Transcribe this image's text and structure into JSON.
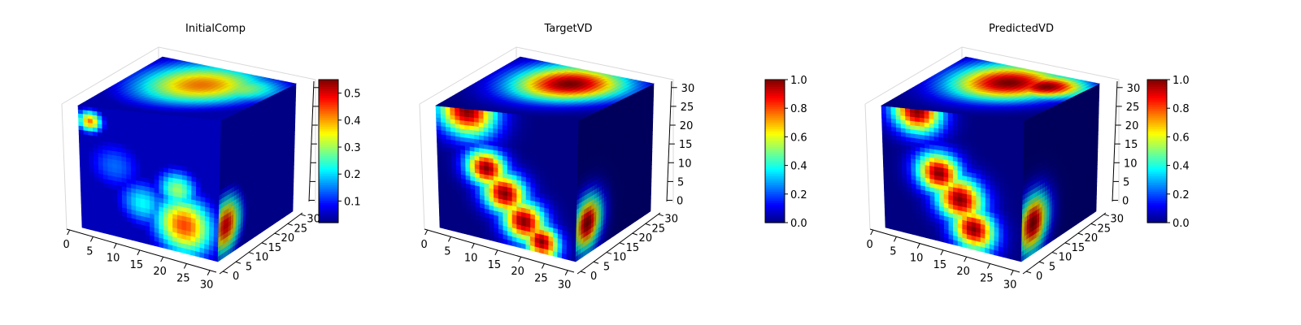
{
  "chart_data": [
    {
      "type": "3d-voxel",
      "title": "InitialComp",
      "x_ticks": [
        "0",
        "5",
        "10",
        "15",
        "20",
        "25",
        "30"
      ],
      "y_ticks": [
        "0",
        "5",
        "10",
        "15",
        "20",
        "25",
        "30"
      ],
      "z_ticks": [],
      "colorbar": {
        "cmap": "jet",
        "range": [
          0.02,
          0.55
        ],
        "ticks": [
          "0.1",
          "0.2",
          "0.3",
          "0.4",
          "0.5"
        ],
        "tick_values": [
          0.1,
          0.2,
          0.3,
          0.4,
          0.5
        ]
      },
      "front_face_blobs": [
        {
          "cx": 0.08,
          "cy": 0.12,
          "r": 0.06,
          "value": 0.42
        },
        {
          "cx": 0.75,
          "cy": 0.8,
          "r": 0.15,
          "value": 0.45
        },
        {
          "cx": 0.7,
          "cy": 0.55,
          "r": 0.1,
          "value": 0.3
        },
        {
          "cx": 0.45,
          "cy": 0.7,
          "r": 0.12,
          "value": 0.22
        },
        {
          "cx": 0.25,
          "cy": 0.45,
          "r": 0.14,
          "value": 0.14
        }
      ],
      "side_face_blobs": [
        {
          "cx": 0.1,
          "cy": 0.78,
          "r": 0.14,
          "value": 0.5
        }
      ],
      "top_face_blobs": [
        {
          "cx": 0.5,
          "cy": 0.35,
          "r": 0.3,
          "value": 0.42
        },
        {
          "cx": 0.75,
          "cy": 0.3,
          "r": 0.22,
          "value": 0.3
        }
      ],
      "base_value": 0.05
    },
    {
      "type": "3d-voxel",
      "title": "TargetVD",
      "x_ticks": [
        "0",
        "5",
        "10",
        "15",
        "20",
        "25",
        "30"
      ],
      "y_ticks": [
        "0",
        "5",
        "10",
        "15",
        "20",
        "25",
        "30"
      ],
      "z_ticks": [
        "0",
        "5",
        "10",
        "15",
        "20",
        "25",
        "30"
      ],
      "colorbar": {
        "cmap": "jet",
        "range": [
          0.0,
          1.0
        ],
        "ticks": [
          "0.0",
          "0.2",
          "0.4",
          "0.6",
          "0.8",
          "1.0"
        ],
        "tick_values": [
          0.0,
          0.2,
          0.4,
          0.6,
          0.8,
          1.0
        ]
      },
      "front_face_blobs": [
        {
          "cx": 0.22,
          "cy": 0.02,
          "r": 0.14,
          "value": 1.0
        },
        {
          "cx": 0.35,
          "cy": 0.45,
          "r": 0.1,
          "value": 1.0
        },
        {
          "cx": 0.48,
          "cy": 0.62,
          "r": 0.11,
          "value": 1.0
        },
        {
          "cx": 0.62,
          "cy": 0.8,
          "r": 0.11,
          "value": 1.0
        },
        {
          "cx": 0.75,
          "cy": 0.92,
          "r": 0.09,
          "value": 1.0
        }
      ],
      "side_face_blobs": [
        {
          "cx": 0.15,
          "cy": 0.78,
          "r": 0.13,
          "value": 1.0
        }
      ],
      "top_face_blobs": [
        {
          "cx": 0.55,
          "cy": 0.3,
          "r": 0.26,
          "value": 1.0
        }
      ],
      "base_value": 0.0
    },
    {
      "type": "3d-voxel",
      "title": "PredictedVD",
      "x_ticks": [
        "0",
        "5",
        "10",
        "15",
        "20",
        "25",
        "30"
      ],
      "y_ticks": [
        "0",
        "5",
        "10",
        "15",
        "20",
        "25",
        "30"
      ],
      "z_ticks": [
        "0",
        "5",
        "10",
        "15",
        "20",
        "25",
        "30"
      ],
      "colorbar": {
        "cmap": "jet",
        "range": [
          0.0,
          1.0
        ],
        "ticks": [
          "0.0",
          "0.2",
          "0.4",
          "0.6",
          "0.8",
          "1.0"
        ],
        "tick_values": [
          0.0,
          0.2,
          0.4,
          0.6,
          0.8,
          1.0
        ]
      },
      "front_face_blobs": [
        {
          "cx": 0.25,
          "cy": 0.02,
          "r": 0.12,
          "value": 1.0
        },
        {
          "cx": 0.4,
          "cy": 0.48,
          "r": 0.11,
          "value": 1.0
        },
        {
          "cx": 0.55,
          "cy": 0.65,
          "r": 0.12,
          "value": 1.0
        },
        {
          "cx": 0.65,
          "cy": 0.85,
          "r": 0.11,
          "value": 1.0
        }
      ],
      "side_face_blobs": [
        {
          "cx": 0.15,
          "cy": 0.78,
          "r": 0.14,
          "value": 1.0
        }
      ],
      "top_face_blobs": [
        {
          "cx": 0.5,
          "cy": 0.3,
          "r": 0.26,
          "value": 1.0
        },
        {
          "cx": 0.75,
          "cy": 0.25,
          "r": 0.18,
          "value": 1.0
        }
      ],
      "base_value": 0.0
    }
  ]
}
